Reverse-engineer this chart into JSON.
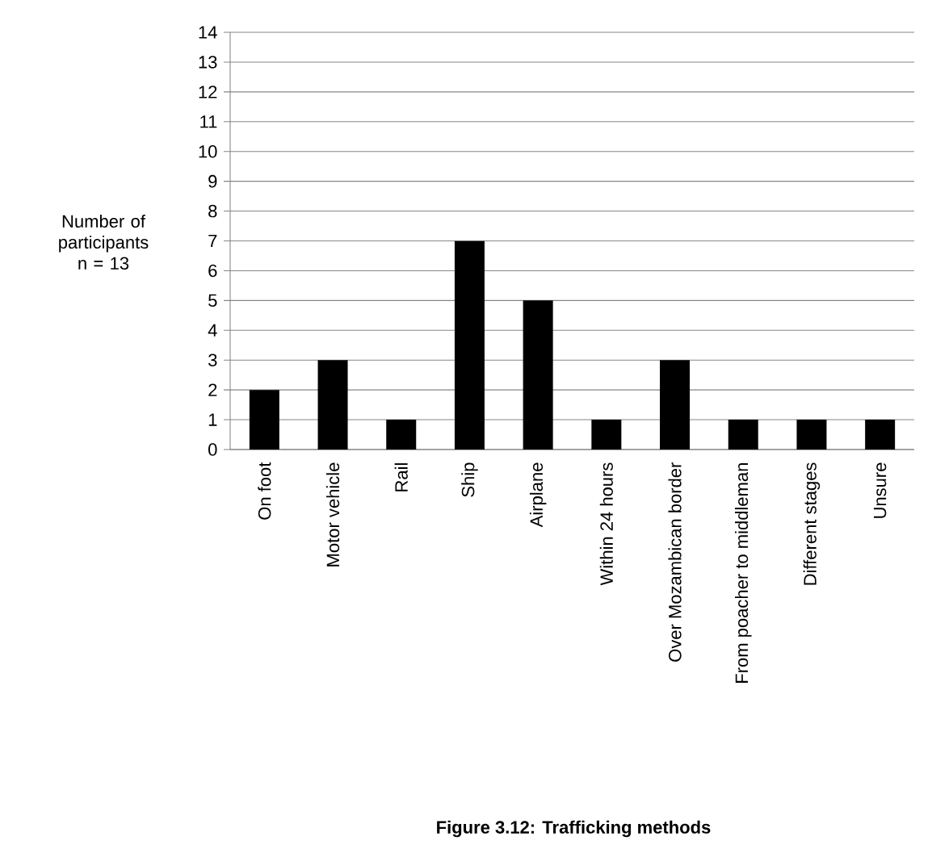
{
  "chart_data": {
    "type": "bar",
    "title": "Figure 3.12: Trafficking methods",
    "ylabel": "Number of participants n = 13",
    "categories": [
      "On foot",
      "Motor vehicle",
      "Rail",
      "Ship",
      "Airplane",
      "Within 24 hours",
      "Over Mozambican border",
      "From poacher to middleman",
      "Different stages",
      "Unsure"
    ],
    "values": [
      2,
      3,
      1,
      7,
      5,
      1,
      3,
      1,
      1,
      1
    ],
    "color": "#000000",
    "ylim": [
      0,
      14
    ],
    "yticks": [
      0,
      1,
      2,
      3,
      4,
      5,
      6,
      7,
      8,
      9,
      10,
      11,
      12,
      13,
      14
    ],
    "grid": "y"
  }
}
